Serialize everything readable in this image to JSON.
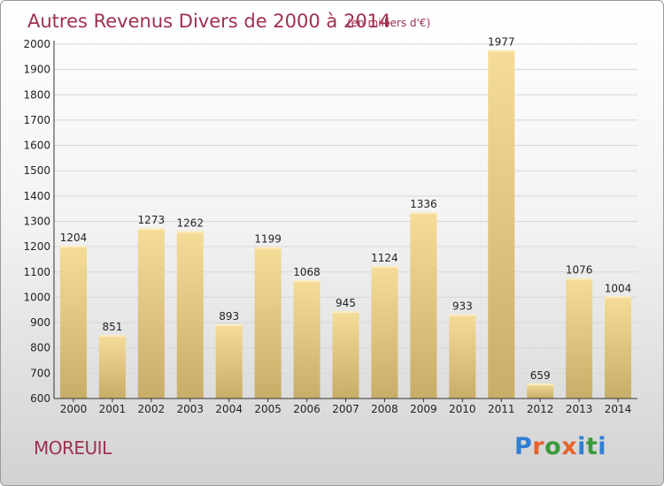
{
  "header": {
    "title": "Autres Revenus Divers de 2000 à 2014",
    "unit": "(en milliers d'€)"
  },
  "footer": {
    "town": "MOREUIL",
    "logo": "Proxiti"
  },
  "colors": {
    "accent": "#a0304f",
    "bar_light": "#f5dc98",
    "bar_dark": "#c8ad68"
  },
  "chart_data": {
    "type": "bar",
    "title": "Autres Revenus Divers de 2000 à 2014",
    "subtitle": "(en milliers d'€)",
    "xlabel": "",
    "ylabel": "",
    "categories": [
      "2000",
      "2001",
      "2002",
      "2003",
      "2004",
      "2005",
      "2006",
      "2007",
      "2008",
      "2009",
      "2010",
      "2011",
      "2012",
      "2013",
      "2014"
    ],
    "values": [
      1204,
      851,
      1273,
      1262,
      893,
      1199,
      1068,
      945,
      1124,
      1336,
      933,
      1977,
      659,
      1076,
      1004
    ],
    "ylim": [
      600,
      2000
    ],
    "yticks": [
      600,
      700,
      800,
      900,
      1000,
      1100,
      1200,
      1300,
      1400,
      1500,
      1600,
      1700,
      1800,
      1900,
      2000
    ],
    "grid": true,
    "legend": "none"
  }
}
